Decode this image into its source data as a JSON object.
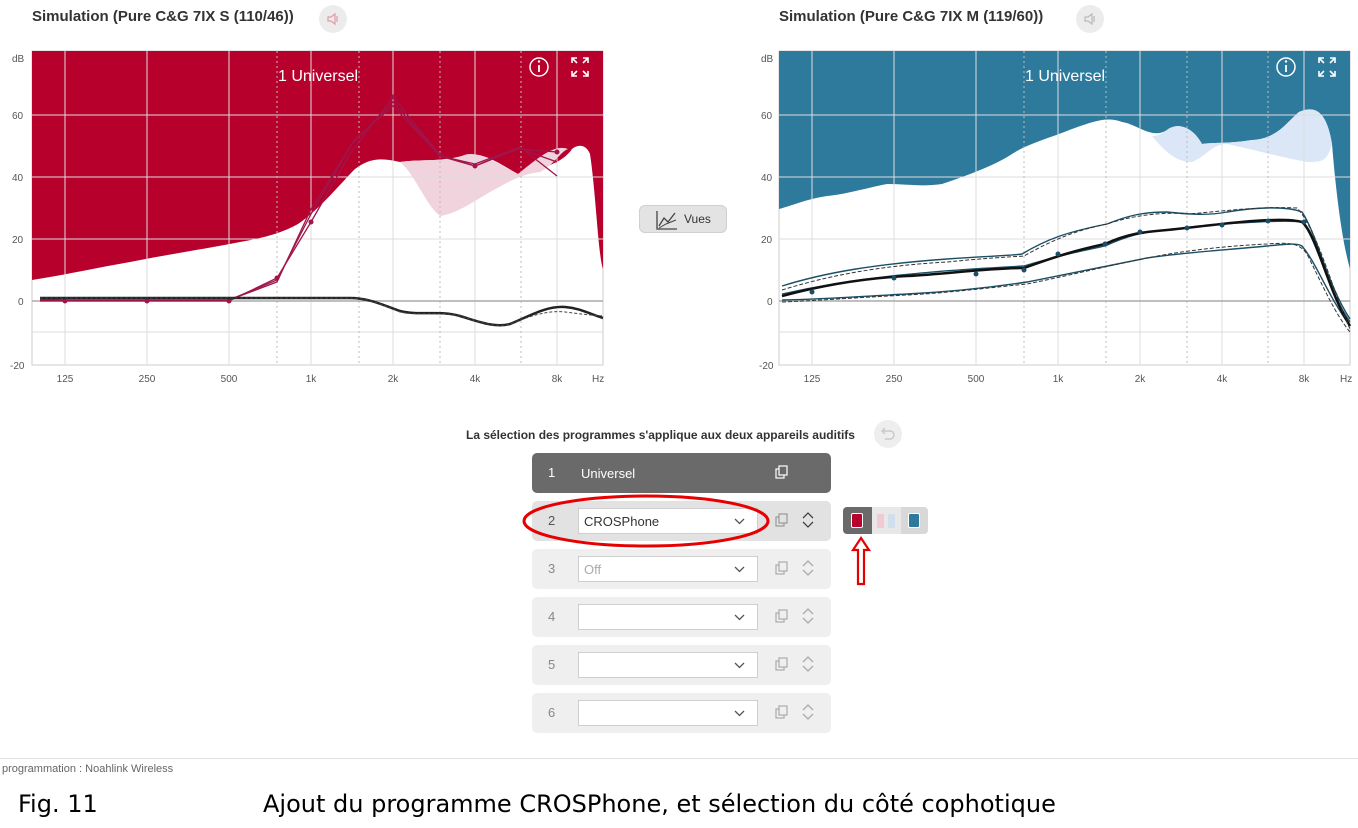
{
  "left_panel": {
    "title": "Simulation (Pure C&G 7IX S (110/46))",
    "program_label": "1 Universel",
    "fill_color": "#b8002d",
    "line_color": "#a0154a",
    "icons": [
      "speaker-muted-icon",
      "info-icon",
      "expand-icon"
    ]
  },
  "right_panel": {
    "title": "Simulation (Pure C&G 7IX M (119/60))",
    "program_label": "1 Universel",
    "fill_color": "#2e7a9c",
    "line_color": "#1b4f66",
    "icons": [
      "speaker-muted-icon",
      "info-icon",
      "expand-icon"
    ]
  },
  "axes": {
    "y_unit": "dB",
    "y_ticks": [
      "60",
      "40",
      "20",
      "0",
      "-20"
    ],
    "x_ticks": [
      "125",
      "250",
      "500",
      "1k",
      "2k",
      "4k",
      "8k"
    ],
    "x_unit": "Hz"
  },
  "vues_button": {
    "label": "Vues",
    "icon": "chart-view-icon"
  },
  "programs": {
    "apply_label": "La sélection des programmes s'applique aux deux appareils auditifs",
    "undo_icon": "undo-icon",
    "rows": [
      {
        "number": "1",
        "name": "Universel"
      },
      {
        "number": "2",
        "value": "CROSPhone"
      },
      {
        "number": "3",
        "value": "Off"
      },
      {
        "number": "4",
        "value": ""
      },
      {
        "number": "5",
        "value": ""
      },
      {
        "number": "6",
        "value": ""
      }
    ]
  },
  "side_selector": {
    "left_color": "#b8002d",
    "right_color": "#2e7a9c",
    "selected": "left"
  },
  "annotation": {
    "color": "#e60000"
  },
  "status": {
    "text": "programmation : Noahlink Wireless"
  },
  "caption": {
    "figure": "Fig. 11",
    "text": "Ajout du programme CROSPhone, et sélection du côté cophotique"
  }
}
